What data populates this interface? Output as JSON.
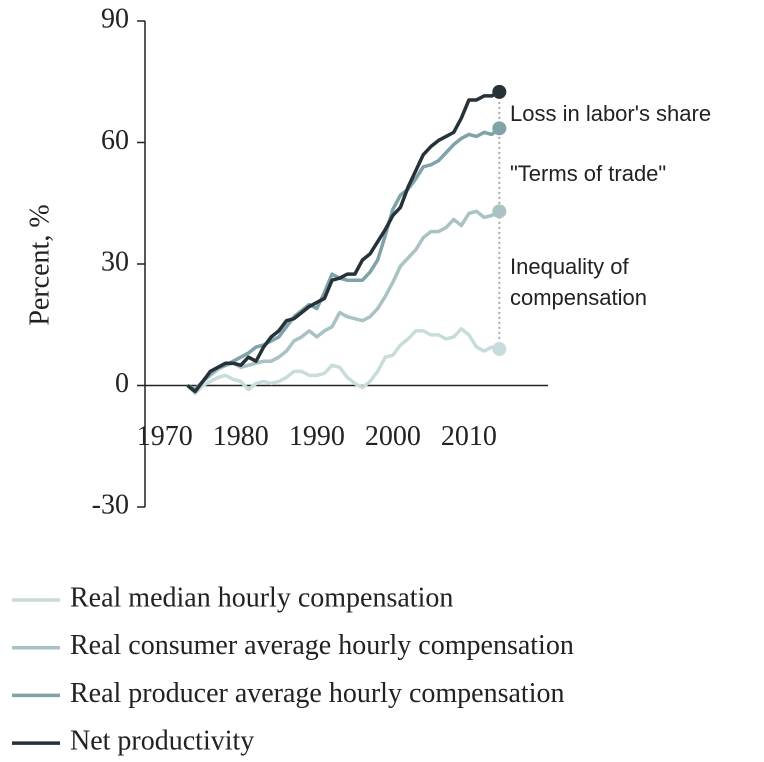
{
  "chart_data": {
    "type": "line",
    "y_label": "Percent, %",
    "x": [
      1973,
      1974,
      1975,
      1976,
      1977,
      1978,
      1979,
      1980,
      1981,
      1982,
      1983,
      1984,
      1985,
      1986,
      1987,
      1988,
      1989,
      1990,
      1991,
      1992,
      1993,
      1994,
      1995,
      1996,
      1997,
      1998,
      1999,
      2000,
      2001,
      2002,
      2003,
      2004,
      2005,
      2006,
      2007,
      2008,
      2009,
      2010,
      2011,
      2012,
      2013,
      2014
    ],
    "series": [
      {
        "name": "Real median hourly compensation",
        "color": "#c9dcdc",
        "values": [
          0,
          -2,
          0,
          1,
          2,
          2.5,
          1.5,
          1,
          -1,
          0.5,
          1,
          0.5,
          1,
          2,
          3.5,
          3.5,
          2.5,
          2.5,
          3,
          5,
          4.5,
          2,
          0.5,
          -0.5,
          1,
          3.5,
          7,
          7.5,
          10,
          11.5,
          13.5,
          13.5,
          12.5,
          12.5,
          11.5,
          12,
          14,
          12.5,
          9.5,
          8.5,
          9.5,
          9
        ]
      },
      {
        "name": "Real consumer average hourly compensation",
        "color": "#a9c2c4",
        "values": [
          0,
          -1,
          1,
          2.5,
          4,
          5,
          5.5,
          4.5,
          5,
          5.5,
          6,
          6,
          7,
          8.5,
          11,
          12,
          13.5,
          12,
          13.5,
          14.5,
          18,
          17,
          16.5,
          16,
          17,
          19,
          22,
          25.5,
          29.5,
          31.5,
          33.5,
          36.5,
          38,
          38,
          39,
          41,
          39.5,
          42.5,
          43,
          41.5,
          42,
          43
        ]
      },
      {
        "name": "Real producer average hourly compensation",
        "color": "#7fa3a8",
        "values": [
          0,
          -1,
          1,
          3,
          4.5,
          5,
          6,
          7,
          8,
          9.5,
          10,
          11,
          12,
          14.5,
          17,
          18.5,
          20,
          19,
          23,
          27.5,
          26.5,
          26,
          26,
          26,
          28,
          31,
          37,
          43.5,
          47,
          48.5,
          51,
          54,
          54.5,
          55.5,
          57.5,
          59.5,
          61,
          62,
          61.5,
          62.5,
          62,
          63.5
        ]
      },
      {
        "name": "Net productivity",
        "color": "#263238",
        "values": [
          0,
          -1.5,
          1,
          3.5,
          4.5,
          5.5,
          5.5,
          5,
          7,
          6,
          9.5,
          12,
          13.5,
          16,
          16.5,
          18,
          19.5,
          20.5,
          21.5,
          26,
          26.5,
          27.5,
          27.5,
          31,
          32.5,
          35.5,
          38.5,
          42,
          44,
          49,
          53,
          57,
          59,
          60.5,
          61.5,
          62.5,
          66,
          70.5,
          70.5,
          71.5,
          71.5,
          72.5
        ]
      }
    ],
    "xlim": [
      1967.4,
      2020.4
    ],
    "xticks": [
      1970,
      1980,
      1990,
      2000,
      2010
    ],
    "ylim": [
      -30,
      90
    ],
    "yticks": [
      -30,
      0,
      30,
      60,
      90
    ],
    "annotations": [
      "Loss in labor's share",
      "\"Terms of trade\"",
      "Inequality of compensation"
    ]
  }
}
